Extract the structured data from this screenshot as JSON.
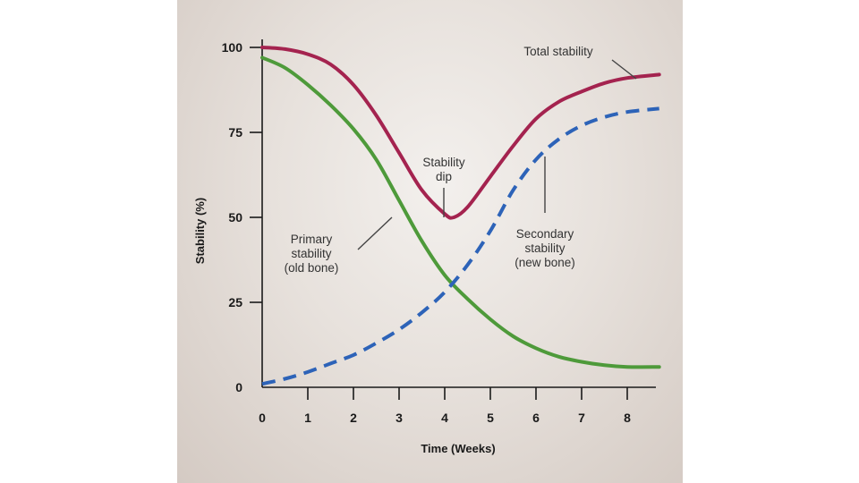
{
  "chart_data": {
    "type": "line",
    "xlabel": "Time (Weeks)",
    "ylabel": "Stability (%)",
    "xlim": [
      0,
      8.7
    ],
    "ylim": [
      0,
      100
    ],
    "x_ticks": [
      "0",
      "1",
      "2",
      "3",
      "4",
      "5",
      "6",
      "7",
      "8"
    ],
    "y_ticks": [
      "0",
      "25",
      "50",
      "75",
      "100"
    ],
    "series": [
      {
        "name": "Total stability",
        "style": "solid",
        "color": "#a4234f",
        "x": [
          0,
          0.5,
          1,
          1.5,
          2,
          2.5,
          3,
          3.5,
          4,
          4.2,
          4.5,
          5,
          5.5,
          6,
          6.5,
          7,
          7.5,
          8,
          8.7
        ],
        "values": [
          100,
          99.5,
          98,
          95,
          89,
          80,
          69,
          58,
          51,
          50,
          53,
          62,
          71,
          79,
          84,
          87,
          89.5,
          91,
          92
        ]
      },
      {
        "name": "Primary stability (old bone)",
        "style": "solid",
        "color": "#4e9a3a",
        "x": [
          0,
          0.5,
          1,
          1.5,
          2,
          2.5,
          3,
          3.5,
          4,
          4.5,
          5,
          5.5,
          6,
          6.5,
          7,
          7.5,
          8,
          8.7
        ],
        "values": [
          97,
          94,
          89,
          83,
          76,
          67,
          55,
          43,
          33,
          26,
          20,
          15,
          11.5,
          9,
          7.5,
          6.5,
          6,
          6
        ]
      },
      {
        "name": "Secondary stability (new bone)",
        "style": "dashed",
        "color": "#2d63b8",
        "x": [
          0,
          0.5,
          1,
          1.5,
          2,
          2.5,
          3,
          3.5,
          4,
          4.5,
          5,
          5.5,
          6,
          6.5,
          7,
          7.5,
          8,
          8.7
        ],
        "values": [
          1,
          2.5,
          4.5,
          7,
          9.5,
          13,
          17,
          22,
          28,
          36,
          46,
          58,
          67,
          73,
          77,
          79.5,
          81,
          82
        ]
      }
    ],
    "annotations": [
      {
        "id": "total",
        "lines": [
          "Total stability"
        ]
      },
      {
        "id": "dip",
        "lines": [
          "Stability",
          "dip"
        ]
      },
      {
        "id": "primary",
        "lines": [
          "Primary",
          "stability",
          "(old bone)"
        ]
      },
      {
        "id": "secondary",
        "lines": [
          "Secondary",
          "stability",
          "(new bone)"
        ]
      }
    ],
    "grid": false,
    "legend": "none"
  }
}
